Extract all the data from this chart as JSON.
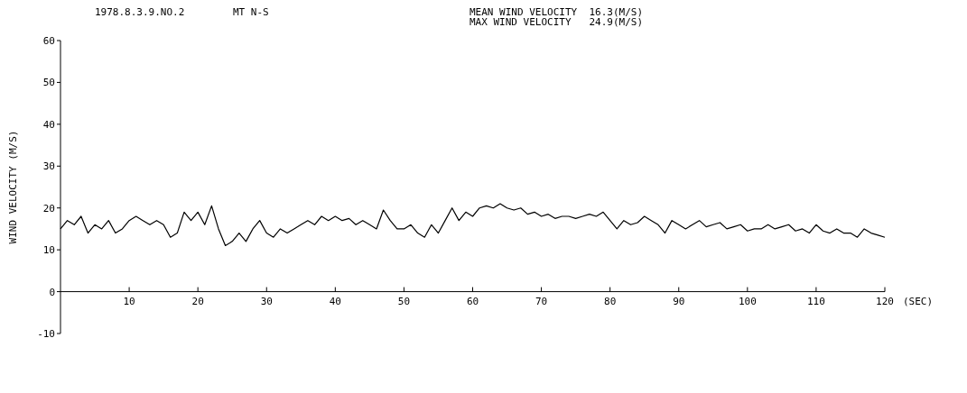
{
  "chart_data": {
    "type": "line",
    "title": "1978.8.3.9.NO.2",
    "subtitle": "MT N-S",
    "annotations": [
      "MEAN WIND VELOCITY  16.3(M/S)",
      "MAX WIND VELOCITY   24.9(M/S)"
    ],
    "xlabel": "(SEC)",
    "ylabel": "WIND VELOCITY (M/S)",
    "xlim": [
      0,
      120
    ],
    "ylim": [
      -10,
      60
    ],
    "xticks": [
      10,
      20,
      30,
      40,
      50,
      60,
      70,
      80,
      90,
      100,
      110,
      120
    ],
    "yticks": [
      -10,
      0,
      10,
      20,
      30,
      40,
      50,
      60
    ],
    "line_style": "solid",
    "x": [
      0,
      1,
      2,
      3,
      4,
      5,
      6,
      7,
      8,
      9,
      10,
      11,
      12,
      13,
      14,
      15,
      16,
      17,
      18,
      19,
      20,
      21,
      22,
      23,
      24,
      25,
      26,
      27,
      28,
      29,
      30,
      31,
      32,
      33,
      34,
      35,
      36,
      37,
      38,
      39,
      40,
      41,
      42,
      43,
      44,
      45,
      46,
      47,
      48,
      49,
      50,
      51,
      52,
      53,
      54,
      55,
      56,
      57,
      58,
      59,
      60,
      61,
      62,
      63,
      64,
      65,
      66,
      67,
      68,
      69,
      70,
      71,
      72,
      73,
      74,
      75,
      76,
      77,
      78,
      79,
      80,
      81,
      82,
      83,
      84,
      85,
      86,
      87,
      88,
      89,
      90,
      91,
      92,
      93,
      94,
      95,
      96,
      97,
      98,
      99,
      100,
      101,
      102,
      103,
      104,
      105,
      106,
      107,
      108,
      109,
      110,
      111,
      112,
      113,
      114,
      115,
      116,
      117,
      118,
      119,
      120
    ],
    "series": [
      {
        "color": "#000000",
        "values": [
          15,
          17,
          16,
          18,
          14,
          16,
          15,
          17,
          14,
          15,
          17,
          18,
          17,
          16,
          17,
          16,
          13,
          14,
          19,
          17,
          19,
          16,
          20.5,
          15,
          11,
          12,
          14,
          12,
          15,
          17,
          14,
          13,
          15,
          14,
          15,
          16,
          17,
          16,
          18,
          17,
          18,
          17,
          17.5,
          16,
          17,
          16,
          15,
          19.5,
          17,
          15,
          15,
          16,
          14,
          13,
          16,
          14,
          17,
          20,
          17,
          19,
          18,
          20,
          20.5,
          20,
          21,
          20,
          19.5,
          20,
          18.5,
          19,
          18,
          18.5,
          17.5,
          18,
          18,
          17.5,
          18,
          18.5,
          18,
          19,
          17,
          15,
          17,
          16,
          16.5,
          18,
          17,
          16,
          14,
          17,
          16,
          15,
          16,
          17,
          15.5,
          16,
          16.5,
          15,
          15.5,
          16,
          14.5,
          15,
          15,
          16,
          15,
          15.5,
          16,
          14.5,
          15,
          14,
          16,
          14.5,
          14,
          15,
          14,
          14,
          13,
          15,
          14,
          13.5,
          13
        ]
      }
    ]
  }
}
